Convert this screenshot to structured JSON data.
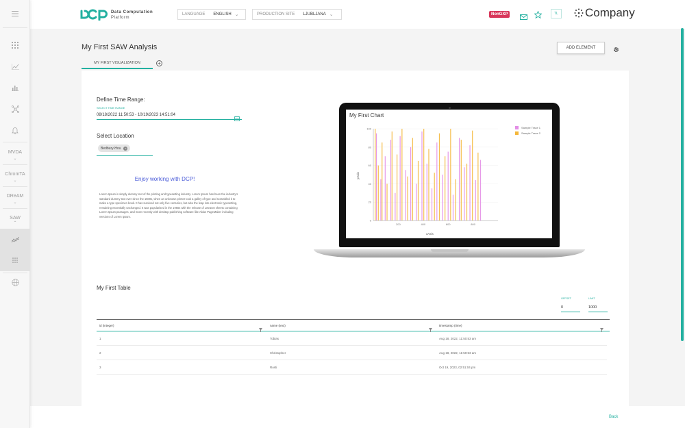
{
  "app": {
    "logo_line1": "Data Computation",
    "logo_line2": "Platform",
    "language_label": "LANGUAGE",
    "language_value": "ENGLISH",
    "site_label": "PRODUCTION SITE",
    "site_value": "LJUBLJANA",
    "badge": "NonGXP",
    "user_initials": "TL",
    "company": "Company",
    "accent_color": "#23b0a0",
    "badge_color": "#d8365a"
  },
  "sidebar": {
    "items": [
      {
        "label": "MVDA"
      },
      {
        "label": "ChromTA"
      },
      {
        "label": "DReAM"
      },
      {
        "label": "SAW"
      }
    ]
  },
  "page": {
    "title": "My First SAW Analysis",
    "add_element": "ADD ELEMENT",
    "tab_label": "MY FIRST VISUALIZATION",
    "tab_add": "+",
    "back": "Back"
  },
  "time_range": {
    "title": "Define Time Range:",
    "hint": "SELECT TIME RANGE",
    "value": "08/18/2022 11:50:53 - 10/19/2023 14:51:04"
  },
  "location": {
    "title": "Select Location",
    "chip": "Bedbury-Hou",
    "chip_close": "×"
  },
  "enjoy_text": "Enjoy working with DCP!",
  "lorem": "Lorem Ipsum is simply dummy text of the printing and typesetting industry. Lorem Ipsum has been the industry's standard dummy text ever since the 1500s, when an unknown printer took a galley of type and scrambled it to make a type specimen book. It has survived not only five centuries, but also the leap into electronic typesetting, remaining essentially unchanged. It was popularised in the 1960s with the release of Letraset sheets containing Lorem Ipsum passages, and more recently with desktop publishing software like Aldus PageMaker including versions of Lorem Ipsum.",
  "chart_data": {
    "type": "bar",
    "title": "My First Chart",
    "xlabel": "xAxis",
    "ylabel": "yAxis",
    "xlim": [
      0,
      1000
    ],
    "ylim": [
      0,
      100
    ],
    "x_ticks": [
      200,
      400,
      600,
      800
    ],
    "y_ticks": [
      0,
      20,
      40,
      60,
      80,
      100
    ],
    "legend_position": "top-right",
    "grid": false,
    "series": [
      {
        "name": "Sample Trace 1",
        "color": "#e38ee6",
        "x": [
          25,
          60,
          95,
          140,
          175,
          215,
          260,
          300,
          345,
          390,
          430,
          470,
          510,
          555,
          600,
          640,
          690,
          730,
          775,
          820,
          860
        ],
        "values": [
          95,
          45,
          70,
          88,
          30,
          92,
          55,
          80,
          40,
          97,
          62,
          35,
          85,
          50,
          75,
          28,
          90,
          58,
          82,
          44,
          66
        ]
      },
      {
        "name": "Sample Trace 2",
        "color": "#f4b73a",
        "x": [
          15,
          40,
          70,
          110,
          150,
          190,
          230,
          275,
          315,
          360,
          405,
          445,
          490,
          530,
          575,
          620,
          660,
          705,
          750,
          795,
          840
        ],
        "values": [
          100,
          60,
          85,
          40,
          97,
          72,
          100,
          48,
          90,
          65,
          100,
          78,
          52,
          95,
          70,
          100,
          45,
          88,
          62,
          98,
          74
        ]
      }
    ]
  },
  "table": {
    "title": "My First Table",
    "offset_label": "OFFSET",
    "offset_value": "0",
    "limit_label": "LIMIT",
    "limit_value": "1000",
    "columns": [
      "id (integer)",
      "name (text)",
      "timestamp (time)"
    ],
    "rows": [
      [
        "1",
        "Tobias",
        "Aug 18, 2022, 11:50:53 am"
      ],
      [
        "2",
        "Christopher",
        "Aug 18, 2022, 11:50:53 am"
      ],
      [
        "3",
        "Rosti",
        "Oct 19, 2023, 02:51:04 pm"
      ]
    ]
  }
}
